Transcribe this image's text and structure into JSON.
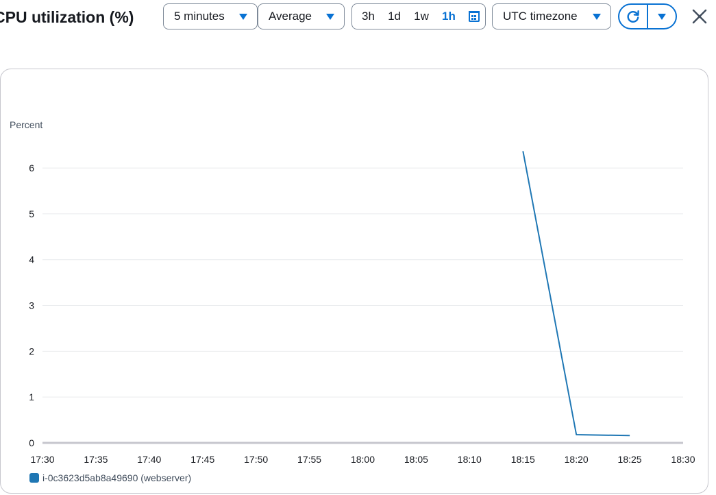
{
  "header": {
    "title": "CPU utilization (%)",
    "period": "5 minutes",
    "statistic": "Average",
    "time_ranges": [
      "3h",
      "1d",
      "1w",
      "1h"
    ],
    "active_range": "1h",
    "timezone": "UTC timezone"
  },
  "colors": {
    "accent": "#0972d3",
    "series": "#1f77b4",
    "grid": "#e9ebed",
    "axis": "#c6c6cd"
  },
  "icons": [
    "chevron-down-icon",
    "calendar-icon",
    "refresh-icon",
    "close-icon"
  ],
  "chart_data": {
    "type": "line",
    "ylabel": "Percent",
    "x_ticks": [
      "17:30",
      "17:35",
      "17:40",
      "17:45",
      "17:50",
      "17:55",
      "18:00",
      "18:05",
      "18:10",
      "18:15",
      "18:20",
      "18:25",
      "18:30"
    ],
    "y_ticks": [
      0,
      1,
      2,
      3,
      4,
      5,
      6
    ],
    "xlim": [
      "17:30",
      "18:30"
    ],
    "ylim": [
      0,
      6.6
    ],
    "grid": true,
    "legend_position": "bottom-left",
    "series": [
      {
        "name": "i-0c3623d5ab8a49690 (webserver)",
        "x": [
          "18:15",
          "18:20",
          "18:25"
        ],
        "values": [
          6.37,
          0.18,
          0.16
        ]
      }
    ]
  }
}
